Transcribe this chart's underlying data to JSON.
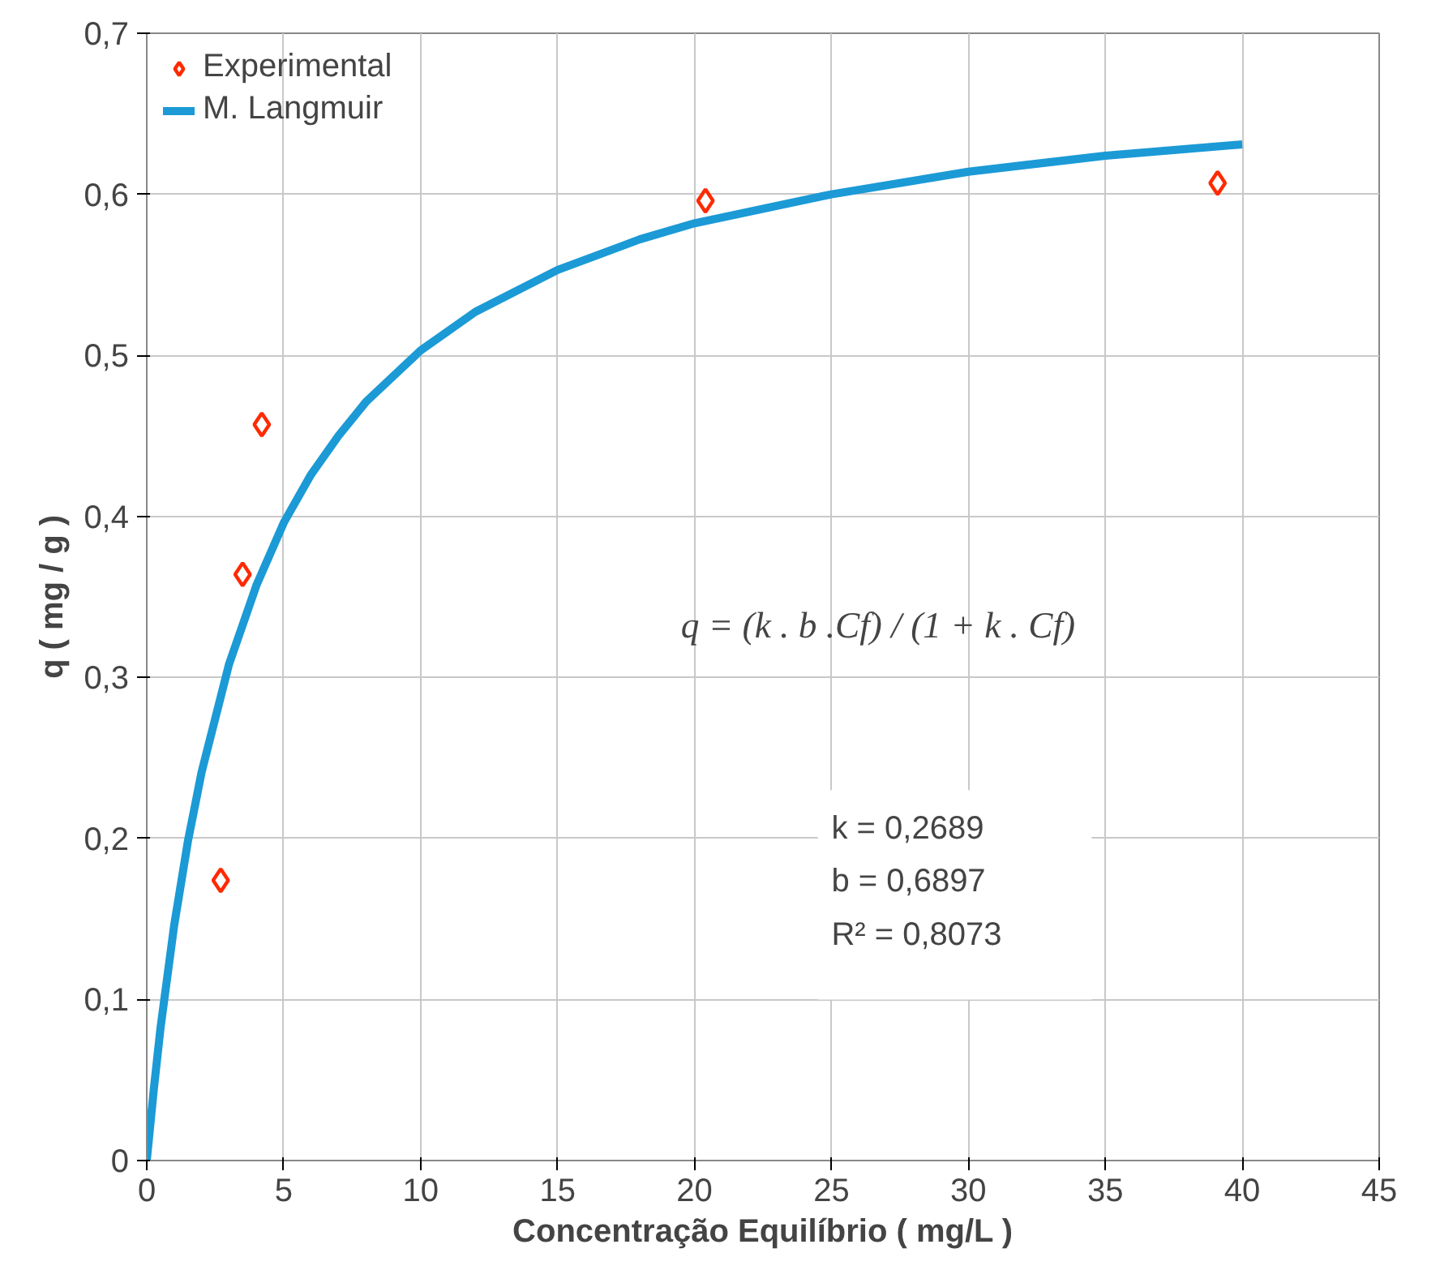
{
  "chart_data": {
    "type": "scatter",
    "xlabel": "Concentração Equilíbrio ( mg/L )",
    "ylabel": "q ( mg / g )",
    "xlim": [
      0,
      45
    ],
    "xticks": [
      0,
      5,
      10,
      15,
      20,
      25,
      30,
      35,
      40,
      45
    ],
    "ylim": [
      0,
      0.7
    ],
    "yticks": [
      0,
      {
        "value": 0.1,
        "label": "0,1"
      },
      {
        "value": 0.2,
        "label": "0,2"
      },
      {
        "value": 0.3,
        "label": "0,3"
      },
      {
        "value": 0.4,
        "label": "0,4"
      },
      {
        "value": 0.5,
        "label": "0,5"
      },
      {
        "value": 0.6,
        "label": "0,6"
      },
      {
        "value": 0.7,
        "label": "0,7"
      }
    ],
    "grid": true,
    "legend": "top left",
    "series": [
      {
        "name": "Experimental",
        "marker": "diamond",
        "color": "#ff2a00",
        "x": [
          2.7,
          3.5,
          4.2,
          20.4,
          39.1
        ],
        "values": [
          0.174,
          0.364,
          0.457,
          0.596,
          0.607
        ]
      },
      {
        "name": "M. Langmuir",
        "type": "line",
        "marker": "none",
        "color": "#1b9ad6",
        "x": [
          0,
          0.25,
          0.5,
          1,
          1.5,
          2,
          3,
          4,
          5,
          6,
          7,
          8,
          10,
          12,
          15,
          18,
          20,
          25,
          30,
          35,
          40
        ],
        "values": [
          0,
          0.043,
          0.082,
          0.146,
          0.198,
          0.241,
          0.308,
          0.357,
          0.396,
          0.426,
          0.45,
          0.471,
          0.503,
          0.527,
          0.553,
          0.572,
          0.582,
          0.6,
          0.614,
          0.624,
          0.631
        ]
      }
    ],
    "annotations": [
      "q = (k . b .Cf) / (1 + k . Cf)",
      "k   = 0,2689",
      "b   = 0,6897",
      "R² =  0,8073"
    ]
  }
}
